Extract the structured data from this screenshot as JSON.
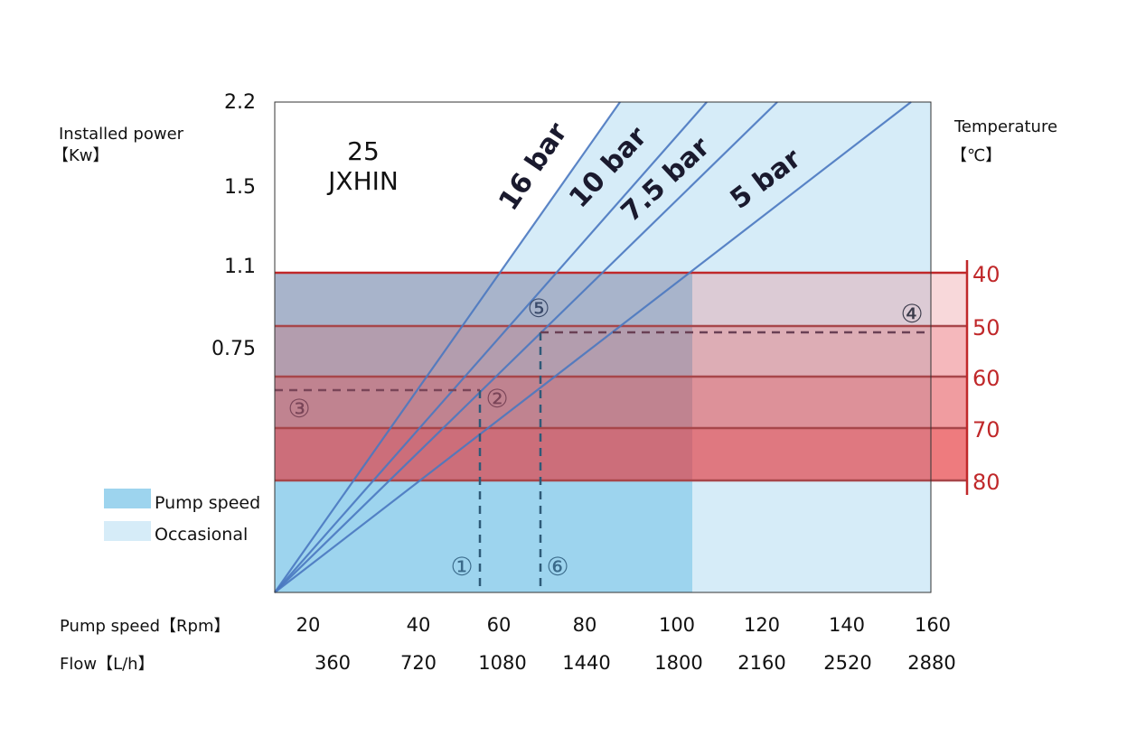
{
  "chart_data": {
    "type": "line",
    "title": "25 JXHIN",
    "model_number": "25",
    "model_name": "JXHIN",
    "ylabel": "Installed power",
    "yunit": "【Kw】",
    "y_ticks": [
      "2.2",
      "1.5",
      "1.1",
      "0.75"
    ],
    "y2label": "Temperature",
    "y2unit": "【℃】",
    "y2_ticks": [
      "40",
      "50",
      "60",
      "70",
      "80"
    ],
    "x_rows": [
      {
        "label": "Pump speed【Rpm】",
        "ticks": [
          "20",
          "40",
          "60",
          "80",
          "100",
          "120",
          "140",
          "160"
        ]
      },
      {
        "label": "Flow【L/h】",
        "ticks": [
          "360",
          "720",
          "1080",
          "1440",
          "1800",
          "2160",
          "2520",
          "2880"
        ]
      }
    ],
    "series": [
      {
        "name": "16 bar"
      },
      {
        "name": "10 bar"
      },
      {
        "name": "7.5 bar"
      },
      {
        "name": "5 bar"
      }
    ],
    "legend": [
      {
        "label": "Pump speed",
        "color": "#9dd4ee"
      },
      {
        "label": "Occasional",
        "color": "#d6ecf8"
      }
    ],
    "markers": [
      "①",
      "②",
      "③",
      "④",
      "⑤",
      "⑥"
    ],
    "colors": {
      "line": "#4a78c0",
      "temp": "#c0282a",
      "pump": "#9dd4ee",
      "occasional": "#d6ecf8"
    }
  }
}
